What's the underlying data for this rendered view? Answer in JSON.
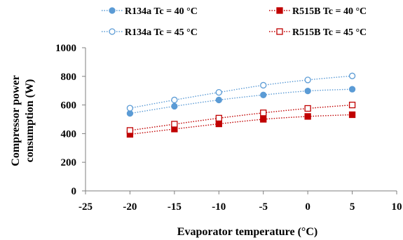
{
  "chart_data": {
    "type": "line",
    "title": "",
    "xlabel": "Evaporator temperature (°C)",
    "ylabel": "Compressor power consumption (W)",
    "ylabel_lines": [
      "Compressor power",
      "consumption (W)"
    ],
    "xlim": [
      -25,
      10
    ],
    "ylim": [
      0,
      1000
    ],
    "xticks": [
      -25,
      -20,
      -15,
      -10,
      -5,
      0,
      5,
      10
    ],
    "yticks": [
      0,
      200,
      400,
      600,
      800,
      1000
    ],
    "grid": false,
    "legend_position": "top",
    "series": [
      {
        "name": "R134a Tc = 40 °C",
        "color": "#5b9bd5",
        "marker": "circle-filled",
        "x": [
          -20,
          -15,
          -10,
          -5,
          0,
          5
        ],
        "y": [
          541,
          591,
          635,
          670,
          698,
          710
        ]
      },
      {
        "name": "R515B Tc = 40 °C",
        "color": "#c00000",
        "marker": "square-filled",
        "x": [
          -20,
          -15,
          -10,
          -5,
          0,
          5
        ],
        "y": [
          395,
          432,
          468,
          500,
          520,
          532
        ]
      },
      {
        "name": "R134a Tc = 45 °C",
        "color": "#5b9bd5",
        "marker": "circle-open",
        "x": [
          -20,
          -15,
          -10,
          -5,
          0,
          5
        ],
        "y": [
          578,
          635,
          688,
          738,
          775,
          803
        ]
      },
      {
        "name": "R515B Tc = 45 °C",
        "color": "#c00000",
        "marker": "square-open",
        "x": [
          -20,
          -15,
          -10,
          -5,
          0,
          5
        ],
        "y": [
          422,
          466,
          508,
          545,
          576,
          600
        ]
      }
    ]
  }
}
